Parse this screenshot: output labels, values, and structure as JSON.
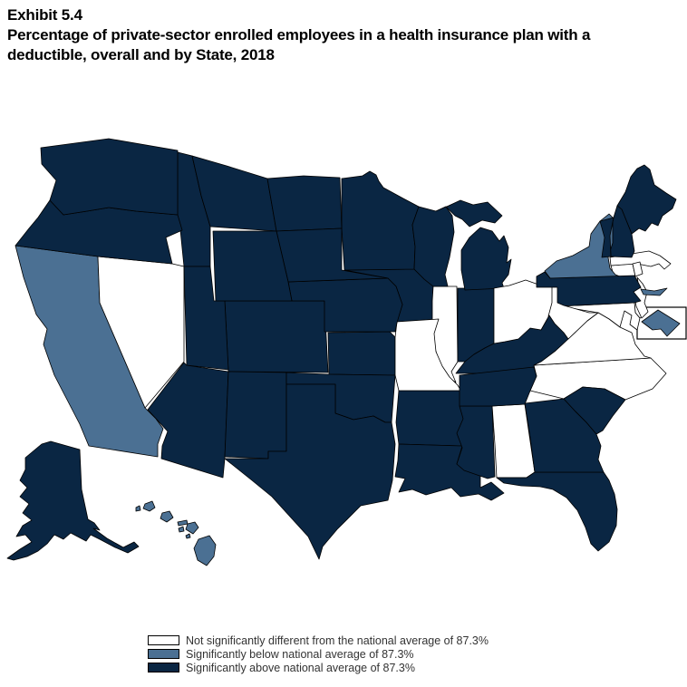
{
  "header": {
    "exhibit": "Exhibit 5.4",
    "title": "Percentage of private-sector enrolled employees in a health insurance plan with a deductible, overall and by State, 2018"
  },
  "legend": {
    "items": [
      {
        "category": "not_different",
        "label": "Not significantly different from the national average of 87.3%",
        "color": "#ffffff"
      },
      {
        "category": "below",
        "label": "Significantly below national average of 87.3%",
        "color": "#4b7093"
      },
      {
        "category": "above",
        "label": "Significantly above national average of 87.3%",
        "color": "#0a2643"
      }
    ]
  },
  "chart_data": {
    "type": "choropleth",
    "title": "Percentage of private-sector enrolled employees in a health insurance plan with a deductible, overall and by State, 2018",
    "national_average": "87.3%",
    "legend_position": "bottom",
    "states": [
      {
        "abbr": "AK",
        "name": "Alaska",
        "category": "above"
      },
      {
        "abbr": "AL",
        "name": "Alabama",
        "category": "not_different"
      },
      {
        "abbr": "AR",
        "name": "Arkansas",
        "category": "above"
      },
      {
        "abbr": "AZ",
        "name": "Arizona",
        "category": "above"
      },
      {
        "abbr": "CA",
        "name": "California",
        "category": "below"
      },
      {
        "abbr": "CO",
        "name": "Colorado",
        "category": "above"
      },
      {
        "abbr": "CT",
        "name": "Connecticut",
        "category": "not_different"
      },
      {
        "abbr": "DC",
        "name": "District of Columbia",
        "category": "below"
      },
      {
        "abbr": "DE",
        "name": "Delaware",
        "category": "not_different"
      },
      {
        "abbr": "FL",
        "name": "Florida",
        "category": "above"
      },
      {
        "abbr": "GA",
        "name": "Georgia",
        "category": "above"
      },
      {
        "abbr": "HI",
        "name": "Hawaii",
        "category": "below"
      },
      {
        "abbr": "IA",
        "name": "Iowa",
        "category": "above"
      },
      {
        "abbr": "ID",
        "name": "Idaho",
        "category": "above"
      },
      {
        "abbr": "IL",
        "name": "Illinois",
        "category": "not_different"
      },
      {
        "abbr": "IN",
        "name": "Indiana",
        "category": "above"
      },
      {
        "abbr": "KS",
        "name": "Kansas",
        "category": "above"
      },
      {
        "abbr": "KY",
        "name": "Kentucky",
        "category": "above"
      },
      {
        "abbr": "LA",
        "name": "Louisiana",
        "category": "above"
      },
      {
        "abbr": "MA",
        "name": "Massachusetts",
        "category": "not_different"
      },
      {
        "abbr": "MD",
        "name": "Maryland",
        "category": "not_different"
      },
      {
        "abbr": "ME",
        "name": "Maine",
        "category": "above"
      },
      {
        "abbr": "MI",
        "name": "Michigan",
        "category": "above"
      },
      {
        "abbr": "MN",
        "name": "Minnesota",
        "category": "above"
      },
      {
        "abbr": "MO",
        "name": "Missouri",
        "category": "not_different"
      },
      {
        "abbr": "MS",
        "name": "Mississippi",
        "category": "above"
      },
      {
        "abbr": "MT",
        "name": "Montana",
        "category": "above"
      },
      {
        "abbr": "NC",
        "name": "North Carolina",
        "category": "not_different"
      },
      {
        "abbr": "ND",
        "name": "North Dakota",
        "category": "above"
      },
      {
        "abbr": "NE",
        "name": "Nebraska",
        "category": "above"
      },
      {
        "abbr": "NH",
        "name": "New Hampshire",
        "category": "above"
      },
      {
        "abbr": "NJ",
        "name": "New Jersey",
        "category": "not_different"
      },
      {
        "abbr": "NM",
        "name": "New Mexico",
        "category": "above"
      },
      {
        "abbr": "NV",
        "name": "Nevada",
        "category": "not_different"
      },
      {
        "abbr": "NY",
        "name": "New York",
        "category": "below"
      },
      {
        "abbr": "OH",
        "name": "Ohio",
        "category": "not_different"
      },
      {
        "abbr": "OK",
        "name": "Oklahoma",
        "category": "above"
      },
      {
        "abbr": "OR",
        "name": "Oregon",
        "category": "above"
      },
      {
        "abbr": "PA",
        "name": "Pennsylvania",
        "category": "above"
      },
      {
        "abbr": "RI",
        "name": "Rhode Island",
        "category": "not_different"
      },
      {
        "abbr": "SC",
        "name": "South Carolina",
        "category": "above"
      },
      {
        "abbr": "SD",
        "name": "South Dakota",
        "category": "above"
      },
      {
        "abbr": "TN",
        "name": "Tennessee",
        "category": "above"
      },
      {
        "abbr": "TX",
        "name": "Texas",
        "category": "above"
      },
      {
        "abbr": "UT",
        "name": "Utah",
        "category": "above"
      },
      {
        "abbr": "VA",
        "name": "Virginia",
        "category": "not_different"
      },
      {
        "abbr": "VT",
        "name": "Vermont",
        "category": "above"
      },
      {
        "abbr": "WA",
        "name": "Washington",
        "category": "above"
      },
      {
        "abbr": "WI",
        "name": "Wisconsin",
        "category": "above"
      },
      {
        "abbr": "WV",
        "name": "West Virginia",
        "category": "not_different"
      },
      {
        "abbr": "WY",
        "name": "Wyoming",
        "category": "above"
      }
    ]
  }
}
